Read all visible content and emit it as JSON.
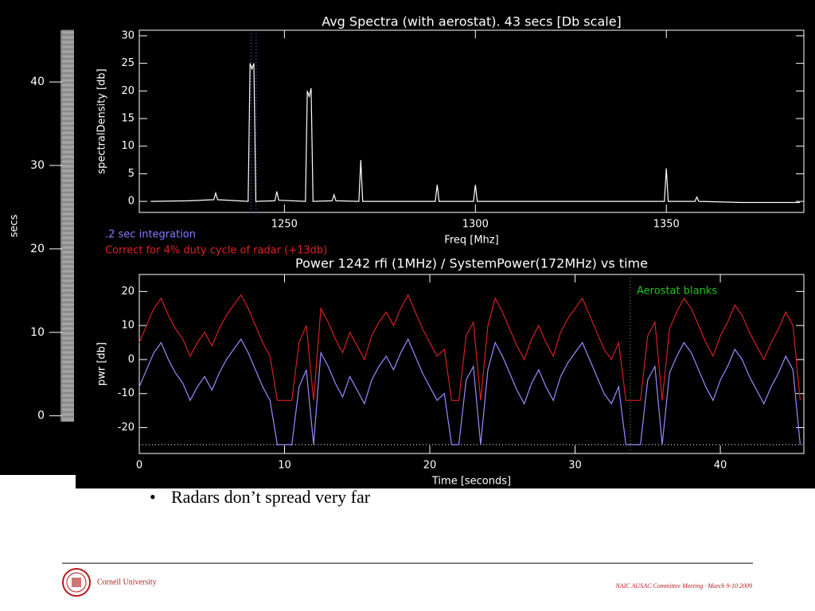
{
  "chart_data": [
    {
      "type": "line",
      "title": "Avg Spectra (with aerostat). 43 secs [Db scale]",
      "xlabel": "Freq [Mhz]",
      "ylabel": "spectralDensity [db]",
      "xlim": [
        1212,
        1386
      ],
      "ylim": [
        -2,
        31
      ],
      "xticks": [
        1250,
        1300,
        1350
      ],
      "yticks": [
        0,
        5,
        10,
        15,
        20,
        25,
        30
      ],
      "series": [
        {
          "color": "#ffffff",
          "x": [
            1215,
            1225,
            1231.5,
            1232,
            1232.5,
            1240.5,
            1241,
            1241.5,
            1242,
            1242.5,
            1247.5,
            1248,
            1248.5,
            1255.5,
            1256,
            1256.5,
            1257,
            1257.5,
            1262.5,
            1263,
            1263.5,
            1269.5,
            1270,
            1270.5,
            1289.5,
            1290,
            1290.5,
            1299.5,
            1300,
            1300.5,
            1320,
            1349.5,
            1350,
            1350.5,
            1357.5,
            1358,
            1358.5,
            1370,
            1385
          ],
          "values": [
            0,
            0.1,
            0.3,
            1.5,
            0.3,
            0,
            25,
            24,
            25,
            0,
            0.1,
            1.8,
            0.2,
            0,
            20,
            19,
            20.5,
            0,
            0.1,
            1.2,
            0.1,
            0,
            7.5,
            0,
            0,
            3,
            0,
            0,
            3,
            0,
            0,
            0,
            6,
            0,
            0,
            0.8,
            0,
            -0.2,
            -0.2
          ]
        }
      ],
      "vlines": [
        1241.3,
        1242.6
      ],
      "vline_color": "#6a6aff",
      "annotations": [
        {
          "text": ".2 sec integration",
          "color": "#8a7aff"
        },
        {
          "text": "Correct for 4% duty cycle of radar (+13db)",
          "color": "#e02020"
        }
      ]
    },
    {
      "type": "line",
      "title": "Power 1242 rfi (1MHz)  / SystemPower(172MHz) vs time",
      "xlabel": "Time [seconds]",
      "ylabel": "pwr [db]",
      "xlim": [
        0,
        45.75
      ],
      "ylim": [
        -27.6,
        25
      ],
      "xticks": [
        0,
        10,
        20,
        30,
        40
      ],
      "yticks": [
        -20,
        -10,
        0,
        10,
        20
      ],
      "series": [
        {
          "color": "#d42020",
          "x": [
            0,
            0.5,
            1,
            1.5,
            2,
            2.5,
            3,
            3.5,
            4,
            4.5,
            5,
            5.5,
            6,
            6.5,
            7,
            7.5,
            8,
            8.5,
            9,
            9.5,
            10,
            10.5,
            11,
            11.5,
            12,
            12.5,
            13,
            13.5,
            14,
            14.5,
            15,
            15.5,
            16,
            16.5,
            17,
            17.5,
            18,
            18.5,
            19,
            19.5,
            20,
            20.5,
            21,
            21.5,
            22,
            22.5,
            23,
            23.5,
            24,
            24.5,
            25,
            25.5,
            26,
            26.5,
            27,
            27.5,
            28,
            28.5,
            29,
            29.5,
            30,
            30.5,
            31,
            31.5,
            32,
            32.5,
            33,
            33.5,
            34,
            34.5,
            35,
            35.5,
            36,
            36.5,
            37,
            37.5,
            38,
            38.5,
            39,
            39.5,
            40,
            40.5,
            41,
            41.5,
            42,
            42.5,
            43,
            43.5,
            44,
            44.5,
            45,
            45.5
          ],
          "values": [
            5,
            10,
            15,
            18,
            13,
            9,
            6,
            1,
            5,
            8,
            4,
            9,
            13,
            16,
            19,
            15,
            10,
            5,
            1,
            -12,
            -12,
            -12,
            5,
            10,
            -12,
            15,
            11,
            6,
            2,
            8,
            4,
            0,
            7,
            11,
            14,
            10,
            15,
            19,
            14,
            9,
            5,
            1,
            3,
            -12,
            -12,
            7,
            11,
            -12,
            10,
            18,
            14,
            9,
            4,
            0,
            6,
            10,
            5,
            1,
            8,
            12,
            15,
            18,
            13,
            8,
            3,
            0,
            5,
            -12,
            -12,
            -12,
            7,
            11,
            -12,
            9,
            14,
            18,
            15,
            10,
            5,
            1,
            7,
            11,
            16,
            13,
            8,
            4,
            0,
            5,
            9,
            14,
            10,
            -12
          ]
        },
        {
          "color": "#9a8aff",
          "x": [
            0,
            0.5,
            1,
            1.5,
            2,
            2.5,
            3,
            3.5,
            4,
            4.5,
            5,
            5.5,
            6,
            6.5,
            7,
            7.5,
            8,
            8.5,
            9,
            9.5,
            10,
            10.5,
            11,
            11.5,
            12,
            12.5,
            13,
            13.5,
            14,
            14.5,
            15,
            15.5,
            16,
            16.5,
            17,
            17.5,
            18,
            18.5,
            19,
            19.5,
            20,
            20.5,
            21,
            21.5,
            22,
            22.5,
            23,
            23.5,
            24,
            24.5,
            25,
            25.5,
            26,
            26.5,
            27,
            27.5,
            28,
            28.5,
            29,
            29.5,
            30,
            30.5,
            31,
            31.5,
            32,
            32.5,
            33,
            33.5,
            34,
            34.5,
            35,
            35.5,
            36,
            36.5,
            37,
            37.5,
            38,
            38.5,
            39,
            39.5,
            40,
            40.5,
            41,
            41.5,
            42,
            42.5,
            43,
            43.5,
            44,
            44.5,
            45,
            45.5
          ],
          "values": [
            -8,
            -3,
            2,
            5,
            0,
            -4,
            -7,
            -12,
            -8,
            -5,
            -9,
            -4,
            0,
            3,
            6,
            2,
            -3,
            -8,
            -12,
            -25,
            -25,
            -25,
            -8,
            -3,
            -25,
            2,
            -2,
            -7,
            -11,
            -5,
            -9,
            -13,
            -6,
            -2,
            1,
            -3,
            2,
            6,
            1,
            -4,
            -8,
            -12,
            -10,
            -25,
            -25,
            -6,
            -2,
            -25,
            -3,
            5,
            1,
            -4,
            -9,
            -13,
            -7,
            -3,
            -8,
            -12,
            -5,
            -1,
            2,
            5,
            0,
            -5,
            -10,
            -13,
            -8,
            -25,
            -25,
            -25,
            -6,
            -2,
            -25,
            -4,
            1,
            5,
            2,
            -3,
            -8,
            -12,
            -6,
            -2,
            3,
            0,
            -5,
            -9,
            -13,
            -8,
            -4,
            1,
            -3,
            -25
          ]
        }
      ],
      "hlines": [
        -25
      ],
      "vlines": [
        33.8
      ],
      "vline_color": "#40c040",
      "annotations": [
        {
          "text": "Aerostat blanks",
          "color": "#20c020"
        }
      ]
    },
    {
      "type": "image",
      "ylabel": "secs",
      "ylim": [
        -0.7,
        46.2
      ],
      "yticks": [
        0,
        10,
        20,
        30,
        40
      ]
    }
  ],
  "slide": {
    "bullet": "Radars don’t spread very far",
    "logo_text": "Cornell University",
    "footer": "NAIC AUSAC  Committee Meeting · March  9-10 2009"
  }
}
